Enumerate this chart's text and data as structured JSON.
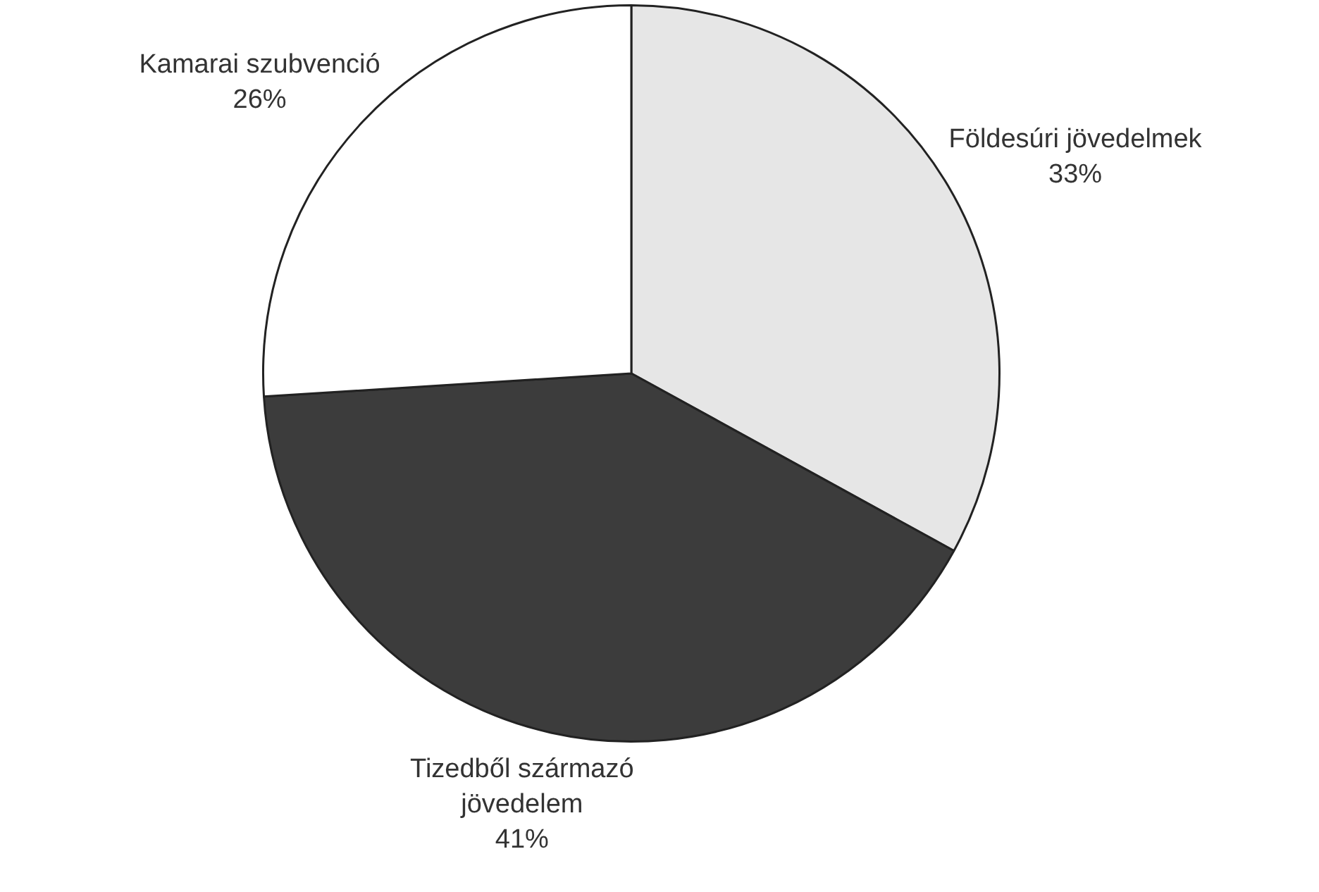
{
  "chart_data": {
    "type": "pie",
    "categories": [
      "Földesúri jövedelmek",
      "Tizedből származó jövedelem",
      "Kamarai szubvenció"
    ],
    "values": [
      33,
      41,
      26
    ],
    "value_labels": [
      "33%",
      "41%",
      "26%"
    ],
    "colors": [
      "#e6e6e6",
      "#3c3c3c",
      "#ffffff"
    ]
  }
}
